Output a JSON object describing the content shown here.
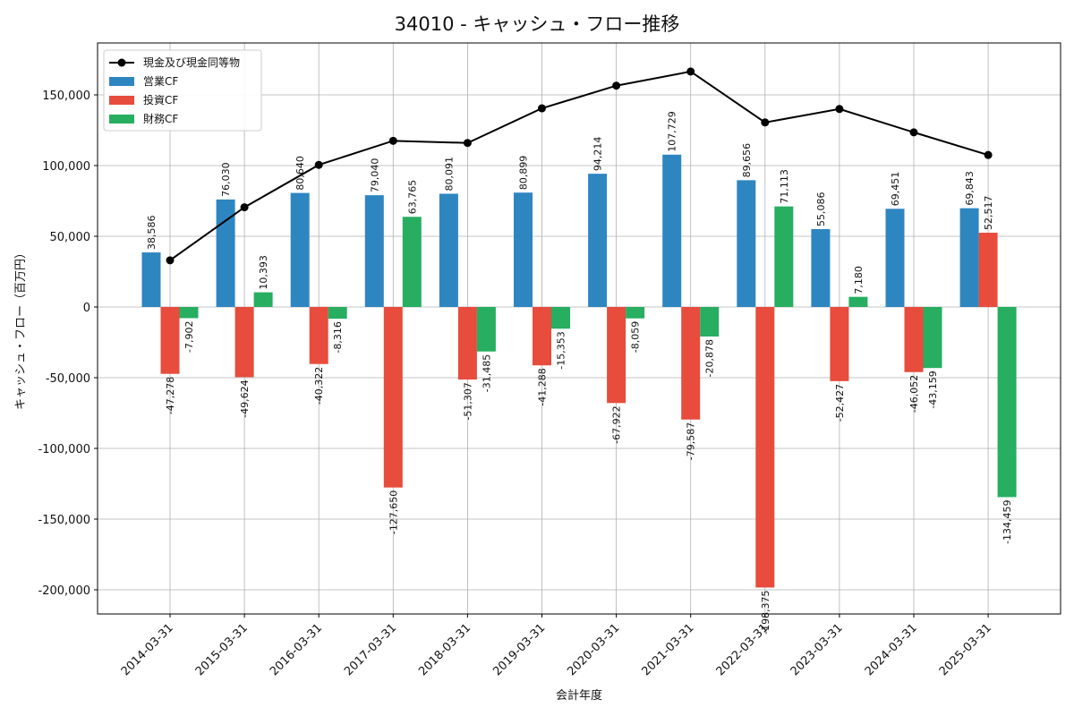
{
  "chart_data": {
    "type": "bar",
    "title": "34010 - キャッシュ・フロー推移",
    "xlabel": "会計年度",
    "ylabel": "キャッシュ・フロー（百万円）",
    "ylim": [
      -217000,
      185000
    ],
    "yticks": [
      -200000,
      -150000,
      -100000,
      -50000,
      0,
      50000,
      100000,
      150000
    ],
    "ytick_labels": [
      "-200,000",
      "-150,000",
      "-100,000",
      "-50,000",
      "0",
      "50,000",
      "100,000",
      "150,000"
    ],
    "grid": true,
    "legend_position": "top-left",
    "categories": [
      "2014-03-31",
      "2015-03-31",
      "2016-03-31",
      "2017-03-31",
      "2018-03-31",
      "2019-03-31",
      "2020-03-31",
      "2021-03-31",
      "2022-03-31",
      "2023-03-31",
      "2024-03-31",
      "2025-03-31"
    ],
    "series": [
      {
        "name": "営業CF",
        "kind": "bar",
        "color": "#2e86c1",
        "values": [
          38586,
          76030,
          80640,
          79040,
          80091,
          80899,
          94214,
          107729,
          89656,
          55086,
          69451,
          69843
        ],
        "labels": [
          "38,586",
          "76,030",
          "80,640",
          "79,040",
          "80,091",
          "80,899",
          "94,214",
          "107,729",
          "89,656",
          "55,086",
          "69,451",
          "69,843"
        ]
      },
      {
        "name": "投資CF",
        "kind": "bar",
        "color": "#e74c3c",
        "values": [
          -47278,
          -49624,
          -40322,
          -127650,
          -51307,
          -41288,
          -67922,
          -79587,
          -198375,
          -52427,
          -46052,
          52517
        ],
        "labels": [
          "-47,278",
          "-49,624",
          "-40,322",
          "-127,650",
          "-51,307",
          "-41,288",
          "-67,922",
          "-79,587",
          "-198,375",
          "-52,427",
          "-46,052",
          "52,517"
        ]
      },
      {
        "name": "財務CF",
        "kind": "bar",
        "color": "#27ae60",
        "values": [
          -7902,
          10393,
          -8316,
          63765,
          -31485,
          -15353,
          -8059,
          -20878,
          71113,
          7180,
          -43159,
          -134459
        ],
        "labels": [
          "-7,902",
          "10,393",
          "-8,316",
          "63,765",
          "-31,485",
          "-15,353",
          "-8,059",
          "-20,878",
          "71,113",
          "7,180",
          "-43,159",
          "-134,459"
        ]
      },
      {
        "name": "現金及び現金同等物",
        "kind": "line",
        "color": "#000000",
        "values": [
          33000,
          70500,
          100500,
          117500,
          116000,
          140500,
          156500,
          166500,
          130500,
          140000,
          123500,
          107500
        ]
      }
    ]
  }
}
